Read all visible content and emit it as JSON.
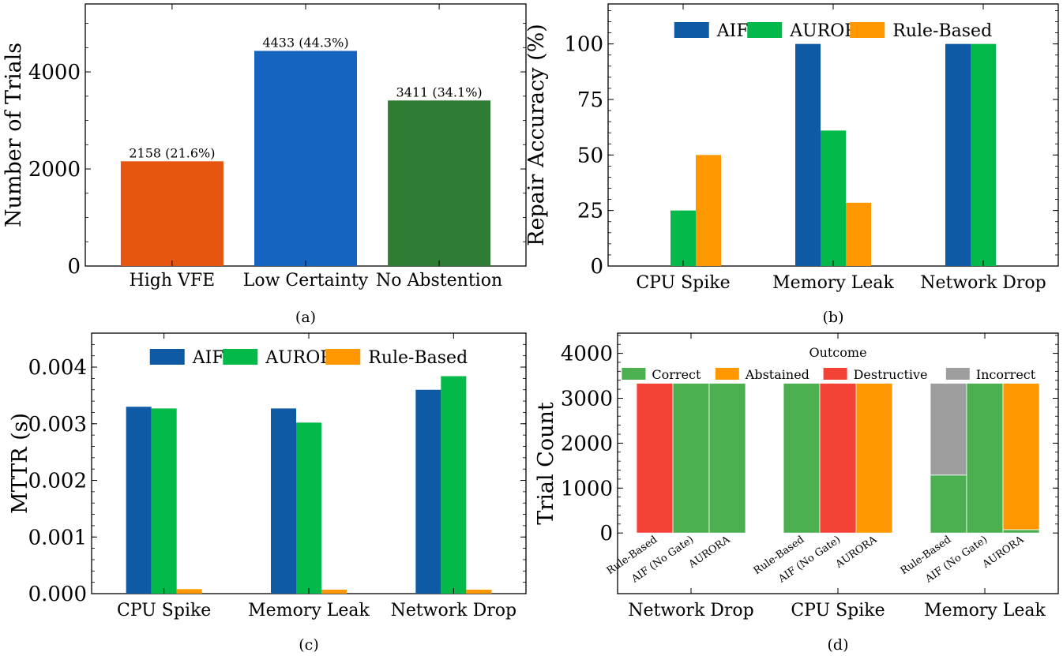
{
  "chart_data": [
    {
      "id": "a",
      "type": "bar",
      "caption": "(a)",
      "ylabel": "Number of Trials",
      "xlabel": "",
      "ylim": [
        0,
        5400
      ],
      "yticks": [
        0,
        2000,
        4000
      ],
      "ytick_labels": [
        "0",
        "2000",
        "4000"
      ],
      "categories": [
        "High VFE",
        "Low Certainty",
        "No Abstention"
      ],
      "values": [
        2158,
        4433,
        3411
      ],
      "bar_labels": [
        "2158 (21.6%)",
        "4433 (44.3%)",
        "3411 (34.1%)"
      ],
      "colors": [
        "#e6550d",
        "#1565c0",
        "#2e7d32"
      ]
    },
    {
      "id": "b",
      "type": "bar",
      "caption": "(b)",
      "ylabel": "Repair Accuracy (%)",
      "xlabel": "",
      "ylim": [
        0,
        118
      ],
      "yticks": [
        0,
        25,
        50,
        75,
        100
      ],
      "ytick_labels": [
        "0",
        "25",
        "50",
        "75",
        "100"
      ],
      "categories": [
        "CPU Spike",
        "Memory Leak",
        "Network Drop"
      ],
      "legend": "top",
      "series": [
        {
          "name": "AIF",
          "color": "#0f5aa5",
          "values": [
            0,
            100,
            100
          ]
        },
        {
          "name": "AURORA",
          "color": "#03b94a",
          "values": [
            25,
            61,
            100
          ]
        },
        {
          "name": "Rule-Based",
          "color": "#ff9800",
          "values": [
            50,
            28.5,
            0
          ]
        }
      ]
    },
    {
      "id": "c",
      "type": "bar",
      "caption": "(c)",
      "ylabel": "MTTR (s)",
      "xlabel": "",
      "ylim": [
        0,
        0.0046
      ],
      "yticks": [
        0,
        0.001,
        0.002,
        0.003,
        0.004
      ],
      "ytick_labels": [
        "0.000",
        "0.001",
        "0.002",
        "0.003",
        "0.004"
      ],
      "categories": [
        "CPU Spike",
        "Memory Leak",
        "Network Drop"
      ],
      "legend": "top",
      "series": [
        {
          "name": "AIF",
          "color": "#0f5aa5",
          "values": [
            0.0033,
            0.00327,
            0.0036
          ]
        },
        {
          "name": "AURORA",
          "color": "#03b94a",
          "values": [
            0.00327,
            0.00302,
            0.00384
          ]
        },
        {
          "name": "Rule-Based",
          "color": "#ff9800",
          "values": [
            8e-05,
            7e-05,
            7e-05
          ]
        }
      ]
    },
    {
      "id": "d",
      "type": "stacked-bar",
      "caption": "(d)",
      "ylabel": "Trial Count",
      "xlabel": "",
      "ylim": [
        -1350,
        4450
      ],
      "yticks": [
        0,
        1000,
        2000,
        3000,
        4000
      ],
      "ytick_labels": [
        "0",
        "1000",
        "2000",
        "3000",
        "4000"
      ],
      "legend_title": "Outcome",
      "legend": "top",
      "outcomes": [
        {
          "name": "Correct",
          "color": "#4caf50"
        },
        {
          "name": "Abstained",
          "color": "#ff9800"
        },
        {
          "name": "Destructive",
          "color": "#f44336"
        },
        {
          "name": "Incorrect",
          "color": "#9e9e9e"
        }
      ],
      "groups": [
        {
          "label": "Network Drop",
          "bars": [
            {
              "label": "Rule-Based",
              "stack": [
                0,
                0,
                3334,
                0
              ]
            },
            {
              "label": "AIF (No Gate)",
              "stack": [
                3334,
                0,
                0,
                0
              ]
            },
            {
              "label": "AURORA",
              "stack": [
                3334,
                0,
                0,
                0
              ]
            }
          ]
        },
        {
          "label": "CPU Spike",
          "bars": [
            {
              "label": "Rule-Based",
              "stack": [
                3334,
                0,
                0,
                0
              ]
            },
            {
              "label": "AIF (No Gate)",
              "stack": [
                0,
                0,
                3334,
                0
              ]
            },
            {
              "label": "AURORA",
              "stack": [
                0,
                3334,
                0,
                0
              ]
            }
          ]
        },
        {
          "label": "Memory Leak",
          "bars": [
            {
              "label": "Rule-Based",
              "stack": [
                1290,
                0,
                0,
                2044
              ]
            },
            {
              "label": "AIF (No Gate)",
              "stack": [
                3334,
                0,
                0,
                0
              ]
            },
            {
              "label": "AURORA",
              "stack": [
                75,
                3259,
                0,
                0
              ]
            }
          ]
        }
      ]
    }
  ]
}
